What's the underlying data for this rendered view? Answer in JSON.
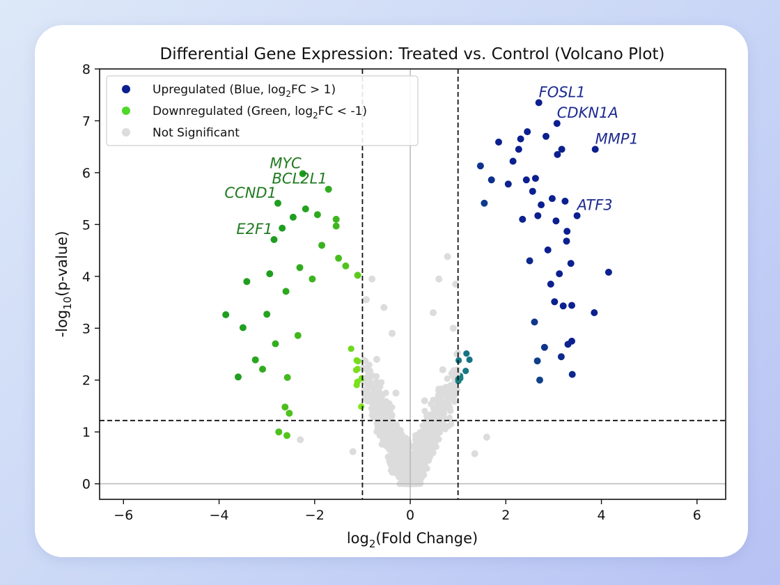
{
  "chart_data": {
    "type": "scatter",
    "title": "Differential Gene Expression: Treated vs. Control (Volcano Plot)",
    "xlabel": {
      "prefix": "log",
      "sub": "2",
      "suffix": "(Fold Change)"
    },
    "ylabel": {
      "prefix": "-log",
      "sub": "10",
      "suffix": "(p-value)"
    },
    "xlim": [
      -6.5,
      6.6
    ],
    "ylim": [
      -0.3,
      8.0
    ],
    "x_ticks": [
      -6,
      -4,
      -2,
      0,
      2,
      4,
      6
    ],
    "x_tick_labels": [
      "−6",
      "−4",
      "−2",
      "0",
      "2",
      "4",
      "6"
    ],
    "y_ticks": [
      0,
      1,
      2,
      3,
      4,
      5,
      6,
      7,
      8
    ],
    "y_tick_labels": [
      "0",
      "1",
      "2",
      "3",
      "4",
      "5",
      "6",
      "7",
      "8"
    ],
    "thresholds": {
      "log2fc": [
        -1,
        1
      ],
      "neg_log10_p": 1.22
    },
    "legend": {
      "position": "top-left",
      "entries": [
        {
          "key": "up",
          "prefix": "Upregulated (Blue, log",
          "sub": "2",
          "suffix": "FC > 1)",
          "color": "#0b1f8f"
        },
        {
          "key": "down",
          "prefix": "Downregulated (Green, log",
          "sub": "2",
          "suffix": "FC < -1)",
          "color": "#4fd82a"
        },
        {
          "key": "ns",
          "prefix": "Not Significant",
          "sub": "",
          "suffix": "",
          "color": "#dcdcdc"
        }
      ]
    },
    "colors": {
      "up_low": "#1a8a82",
      "up_high": "#0b1f8f",
      "down_low": "#86ea1c",
      "down_high": "#1f9e1f",
      "ns": "#dcdcdc",
      "label_up": "#1d2a8f",
      "label_down": "#1f7a1f"
    },
    "series": [
      {
        "name": "Upregulated",
        "group": "up",
        "points": [
          [
            2.69,
            7.35
          ],
          [
            3.07,
            6.95
          ],
          [
            3.87,
            6.45
          ],
          [
            3.49,
            5.17
          ],
          [
            2.84,
            6.7
          ],
          [
            3.08,
            6.35
          ],
          [
            3.17,
            6.45
          ],
          [
            2.45,
            6.79
          ],
          [
            2.27,
            6.45
          ],
          [
            2.62,
            5.89
          ],
          [
            2.43,
            5.86
          ],
          [
            2.56,
            5.64
          ],
          [
            3.24,
            5.45
          ],
          [
            2.74,
            5.38
          ],
          [
            2.67,
            5.17
          ],
          [
            3.05,
            5.07
          ],
          [
            3.28,
            4.87
          ],
          [
            3.27,
            4.68
          ],
          [
            3.36,
            4.25
          ],
          [
            4.15,
            4.08
          ],
          [
            3.85,
            3.3
          ],
          [
            3.2,
            3.43
          ],
          [
            3.38,
            3.44
          ],
          [
            3.02,
            3.51
          ],
          [
            3.38,
            2.75
          ],
          [
            3.3,
            2.69
          ],
          [
            3.16,
            2.45
          ],
          [
            2.66,
            2.37
          ],
          [
            1.47,
            6.13
          ],
          [
            1.85,
            6.59
          ],
          [
            2.15,
            6.22
          ],
          [
            2.31,
            6.65
          ],
          [
            3.39,
            2.11
          ],
          [
            2.71,
            2.0
          ],
          [
            2.81,
            2.63
          ],
          [
            2.94,
            3.85
          ],
          [
            3.12,
            4.05
          ],
          [
            2.88,
            4.51
          ],
          [
            2.97,
            5.5
          ],
          [
            2.35,
            5.1
          ],
          [
            2.05,
            5.78
          ],
          [
            1.7,
            5.86
          ],
          [
            1.55,
            5.41
          ],
          [
            2.5,
            4.3
          ],
          [
            2.6,
            3.12
          ]
        ]
      },
      {
        "name": "Downregulated",
        "group": "down",
        "points": [
          [
            -2.25,
            5.98
          ],
          [
            -2.77,
            5.41
          ],
          [
            -1.71,
            5.68
          ],
          [
            -2.85,
            4.71
          ],
          [
            -2.68,
            4.93
          ],
          [
            -2.94,
            4.05
          ],
          [
            -3.42,
            3.9
          ],
          [
            -3.86,
            3.26
          ],
          [
            -3.5,
            3.01
          ],
          [
            -3.6,
            2.06
          ],
          [
            -3.24,
            2.39
          ],
          [
            -3.09,
            2.21
          ],
          [
            -2.75,
            1.0
          ],
          [
            -2.62,
            1.48
          ],
          [
            -2.53,
            1.36
          ],
          [
            -2.58,
            0.93
          ],
          [
            -2.45,
            5.14
          ],
          [
            -2.19,
            5.3
          ],
          [
            -1.94,
            5.19
          ],
          [
            -1.55,
            5.1
          ],
          [
            -1.55,
            4.97
          ],
          [
            -2.31,
            4.17
          ],
          [
            -2.6,
            3.71
          ],
          [
            -3.0,
            3.27
          ],
          [
            -2.82,
            2.7
          ],
          [
            -2.57,
            2.05
          ],
          [
            -2.35,
            2.86
          ],
          [
            -1.5,
            4.35
          ],
          [
            -1.85,
            4.6
          ],
          [
            -2.05,
            3.95
          ],
          [
            -1.35,
            4.2
          ],
          [
            -1.1,
            4.02
          ]
        ]
      },
      {
        "name": "Not Significant",
        "group": "ns",
        "points": [
          [
            -0.8,
            3.95
          ],
          [
            -0.55,
            3.4
          ],
          [
            -0.38,
            2.9
          ],
          [
            -0.92,
            3.55
          ],
          [
            0.78,
            4.38
          ],
          [
            0.6,
            3.95
          ],
          [
            0.95,
            3.85
          ],
          [
            0.48,
            3.3
          ],
          [
            0.9,
            3.0
          ],
          [
            -1.2,
            0.62
          ],
          [
            1.35,
            0.58
          ],
          [
            -0.3,
            1.75
          ],
          [
            0.3,
            1.6
          ],
          [
            -2.3,
            0.85
          ],
          [
            1.6,
            0.9
          ],
          [
            0.68,
            2.2
          ],
          [
            -0.7,
            2.4
          ]
        ]
      }
    ],
    "annotations": [
      {
        "label": "FOSL1",
        "group": "up"
      },
      {
        "label": "CDKN1A",
        "group": "up"
      },
      {
        "label": "MMP1",
        "group": "up"
      },
      {
        "label": "ATF3",
        "group": "up"
      },
      {
        "label": "MYC",
        "group": "down"
      },
      {
        "label": "CCND1",
        "group": "down"
      },
      {
        "label": "BCL2L1",
        "group": "down"
      },
      {
        "label": "E2F1",
        "group": "down"
      }
    ]
  }
}
